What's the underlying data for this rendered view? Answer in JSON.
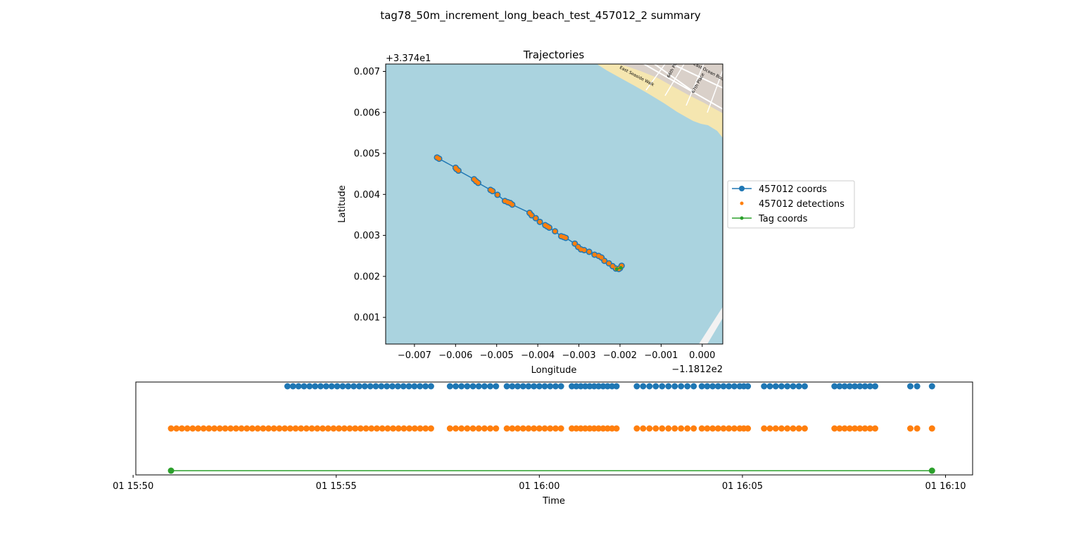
{
  "figure": {
    "suptitle": "tag78_50m_increment_long_beach_test_457012_2 summary"
  },
  "colors": {
    "coords": "#1f77b4",
    "detections": "#ff7f0e",
    "tag": "#2ca02c",
    "water": "#aad3df",
    "beach": "#f5e6b0",
    "urban": "#d9d0c9",
    "road": "#f2f2f2"
  },
  "chart_data": [
    {
      "type": "line",
      "title": "Trajectories",
      "xlabel": "Longitude",
      "ylabel": "Latitude",
      "x_offset_label": "−1.1812e2",
      "y_offset_label": "+3.374e1",
      "xlim": [
        -0.0077,
        0.0005
      ],
      "ylim": [
        0.00035,
        0.00718
      ],
      "xticks": [
        -0.007,
        -0.006,
        -0.005,
        -0.004,
        -0.003,
        -0.002,
        -0.001,
        0.0
      ],
      "xtick_labels": [
        "−0.007",
        "−0.006",
        "−0.005",
        "−0.004",
        "−0.003",
        "−0.002",
        "−0.001",
        "0.000"
      ],
      "yticks": [
        0.001,
        0.002,
        0.003,
        0.004,
        0.005,
        0.006,
        0.007
      ],
      "ytick_labels": [
        "0.001",
        "0.002",
        "0.003",
        "0.004",
        "0.005",
        "0.006",
        "0.007"
      ],
      "grid": false,
      "legend_position": "outside-right",
      "background": "map tiles (ocean, beach, streets)",
      "map_labels": [
        "East Seaside Walk",
        "66th Place",
        "67th Place",
        "East Ocean Boulevard"
      ],
      "series": [
        {
          "name": "457012 coords",
          "marker": "circle",
          "line": true,
          "x": [
            -0.00645,
            -0.0064,
            -0.006,
            -0.00598,
            -0.00593,
            -0.00555,
            -0.0055,
            -0.00545,
            -0.00515,
            -0.0051,
            -0.00498,
            -0.0048,
            -0.00473,
            -0.00467,
            -0.00462,
            -0.0042,
            -0.00415,
            -0.00405,
            -0.00395,
            -0.00382,
            -0.00377,
            -0.00372,
            -0.00358,
            -0.00343,
            -0.00337,
            -0.00332,
            -0.0031,
            -0.00302,
            -0.00295,
            -0.00287,
            -0.00275,
            -0.00262,
            -0.00252,
            -0.00245,
            -0.00238,
            -0.00227,
            -0.00218,
            -0.0021,
            -0.00203,
            -0.002,
            -0.00196
          ],
          "y": [
            0.0049,
            0.00487,
            0.00465,
            0.00462,
            0.00458,
            0.00437,
            0.00432,
            0.00428,
            0.00411,
            0.00408,
            0.00399,
            0.00384,
            0.00381,
            0.00379,
            0.00375,
            0.00355,
            0.00349,
            0.00342,
            0.00333,
            0.00325,
            0.00322,
            0.00319,
            0.0031,
            0.00298,
            0.00296,
            0.00294,
            0.0028,
            0.00272,
            0.00266,
            0.00264,
            0.0026,
            0.00253,
            0.0025,
            0.00246,
            0.00238,
            0.00232,
            0.00225,
            0.00219,
            0.00218,
            0.0022,
            0.00226
          ]
        },
        {
          "name": "457012 detections",
          "marker": "small-circle",
          "line": false,
          "x": [
            -0.00645,
            -0.0064,
            -0.006,
            -0.00598,
            -0.00593,
            -0.00555,
            -0.0055,
            -0.00545,
            -0.00515,
            -0.0051,
            -0.00498,
            -0.0048,
            -0.00473,
            -0.00467,
            -0.00462,
            -0.0042,
            -0.00415,
            -0.00405,
            -0.00395,
            -0.00382,
            -0.00377,
            -0.00372,
            -0.00358,
            -0.00343,
            -0.00337,
            -0.00332,
            -0.0031,
            -0.00302,
            -0.00295,
            -0.00287,
            -0.00275,
            -0.00262,
            -0.00252,
            -0.00245,
            -0.00238,
            -0.00227,
            -0.00218,
            -0.0021,
            -0.00203,
            -0.002,
            -0.00196
          ],
          "y": [
            0.0049,
            0.00487,
            0.00465,
            0.00462,
            0.00458,
            0.00437,
            0.00432,
            0.00428,
            0.00411,
            0.00408,
            0.00399,
            0.00384,
            0.00381,
            0.00379,
            0.00375,
            0.00355,
            0.00349,
            0.00342,
            0.00333,
            0.00325,
            0.00322,
            0.00319,
            0.0031,
            0.00298,
            0.00296,
            0.00294,
            0.0028,
            0.00272,
            0.00266,
            0.00264,
            0.0026,
            0.00253,
            0.0025,
            0.00246,
            0.00238,
            0.00232,
            0.00225,
            0.00219,
            0.00218,
            0.0022,
            0.00226
          ]
        },
        {
          "name": "Tag coords",
          "marker": "small-circle",
          "line": true,
          "x": [
            -0.00208,
            -0.00198
          ],
          "y": [
            0.00218,
            0.00221
          ]
        }
      ]
    },
    {
      "type": "scatter",
      "title": "",
      "xlabel": "Time",
      "ylabel": "",
      "xlim": [
        "15:50:04",
        "16:10:40"
      ],
      "xticks": [
        "15:50",
        "15:55",
        "16:00",
        "16:05",
        "16:10"
      ],
      "xtick_labels": [
        "01 15:50",
        "01 15:55",
        "01 16:00",
        "01 16:05",
        "01 16:10"
      ],
      "yticks": [],
      "grid": false,
      "rows": [
        {
          "series": "457012 coords",
          "segments": [
            [
              "15:53:48",
              "15:57:20",
              27
            ],
            [
              "15:57:48",
              "15:58:56",
              9
            ],
            [
              "15:59:12",
              "16:00:32",
              11
            ],
            [
              "16:00:48",
              "16:01:54",
              11
            ],
            [
              "16:02:24",
              "16:03:48",
              10
            ],
            [
              "16:04:00",
              "16:04:48",
              7
            ],
            [
              "16:04:56",
              "16:05:08",
              3
            ],
            [
              "16:05:32",
              "16:06:32",
              8
            ],
            [
              "16:07:16",
              "16:08:16",
              9
            ],
            [
              "16:09:08",
              "16:09:18",
              2
            ]
          ],
          "points": [
            "16:09:40"
          ]
        },
        {
          "series": "457012 detections",
          "segments": [
            [
              "15:50:56",
              "15:57:20",
              49
            ],
            [
              "15:57:48",
              "15:58:56",
              9
            ],
            [
              "15:59:12",
              "16:00:32",
              11
            ],
            [
              "16:00:48",
              "16:01:54",
              11
            ],
            [
              "16:02:24",
              "16:03:48",
              10
            ],
            [
              "16:04:00",
              "16:04:48",
              7
            ],
            [
              "16:04:56",
              "16:05:08",
              3
            ],
            [
              "16:05:32",
              "16:06:32",
              8
            ],
            [
              "16:07:16",
              "16:08:16",
              9
            ],
            [
              "16:09:08",
              "16:09:18",
              2
            ]
          ],
          "points": [
            "16:09:40"
          ]
        },
        {
          "series": "Tag coords",
          "segments": [],
          "points": [
            "15:50:56",
            "16:09:40"
          ],
          "line": true
        }
      ]
    }
  ]
}
